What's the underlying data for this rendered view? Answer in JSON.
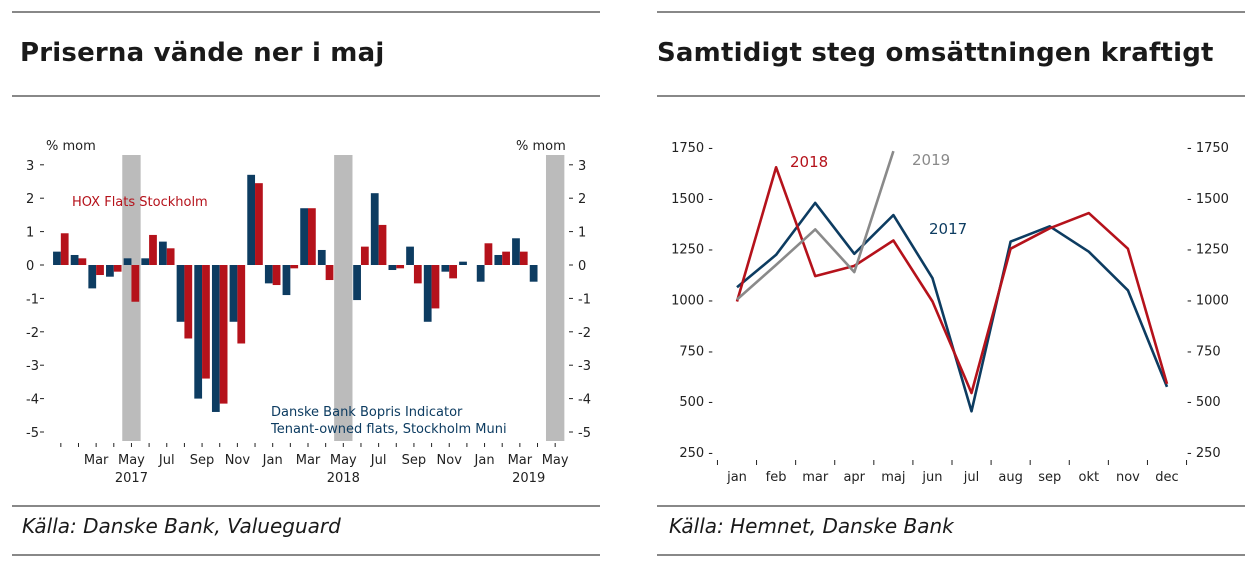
{
  "colors": {
    "navy": "#0d3c61",
    "red": "#b5121b",
    "gray": "#8a8a8a",
    "shade": "#bbbbbb"
  },
  "left_panel": {
    "title": "Priserna vände ner i maj",
    "source": "Källa: Danske Bank, Valueguard"
  },
  "right_panel": {
    "title": "Samtidigt steg omsättningen kraftigt",
    "source": "Källa: Hemnet, Danske Bank"
  },
  "chart_data": [
    {
      "type": "bar",
      "title": "Priserna vände ner i maj",
      "ylabel_left": "% mom",
      "ylabel_right": "% mom",
      "ylim": [
        -5.3,
        3.3
      ],
      "yticks": [
        3,
        2,
        1,
        0,
        -1,
        -2,
        -3,
        -4,
        -5
      ],
      "ytick_labels": [
        "3",
        "2",
        "1",
        "0",
        "-1",
        "-2",
        "-3",
        "-4",
        "-5"
      ],
      "categories": [
        "2017-Jan",
        "2017-Feb",
        "2017-Mar",
        "2017-Apr",
        "2017-May",
        "2017-Jun",
        "2017-Jul",
        "2017-Aug",
        "2017-Sep",
        "2017-Oct",
        "2017-Nov",
        "2017-Dec",
        "2018-Jan",
        "2018-Feb",
        "2018-Mar",
        "2018-Apr",
        "2018-May",
        "2018-Jun",
        "2018-Jul",
        "2018-Aug",
        "2018-Sep",
        "2018-Oct",
        "2018-Nov",
        "2018-Dec",
        "2019-Jan",
        "2019-Feb",
        "2019-Mar",
        "2019-Apr",
        "2019-May"
      ],
      "month_labels": [
        "Mar",
        "May",
        "Jul",
        "Sep",
        "Nov",
        "Jan",
        "Mar",
        "May",
        "Jul",
        "Sep",
        "Nov",
        "Jan",
        "Mar",
        "May"
      ],
      "month_label_index": [
        2,
        4,
        6,
        8,
        10,
        12,
        14,
        16,
        18,
        20,
        22,
        24,
        26,
        28
      ],
      "year_labels": [
        "2017",
        "2018",
        "2019"
      ],
      "year_label_index": [
        4,
        16,
        26.5
      ],
      "shaded_months": [
        4,
        16,
        28
      ],
      "series": [
        {
          "name": "Danske Bank Bopris Indicator",
          "name_line2": "Tenant-owned flats, Stockholm Muni",
          "color": "#0d3c61",
          "values": [
            0.4,
            0.3,
            -0.7,
            -0.35,
            0.2,
            0.2,
            0.7,
            -1.7,
            -4.0,
            -4.4,
            -1.7,
            2.7,
            -0.55,
            -0.9,
            1.7,
            0.45,
            0.0,
            -1.05,
            2.15,
            -0.15,
            0.55,
            -1.7,
            -0.2,
            0.1,
            -0.5,
            0.3,
            0.8,
            -0.5,
            null
          ]
        },
        {
          "name": "HOX Flats Stockholm",
          "color": "#b5121b",
          "values": [
            0.95,
            0.2,
            -0.3,
            -0.2,
            -1.1,
            0.9,
            0.5,
            -2.2,
            -3.4,
            -4.15,
            -2.35,
            2.45,
            -0.6,
            -0.1,
            1.7,
            -0.45,
            0.0,
            0.55,
            1.2,
            -0.1,
            -0.55,
            -1.3,
            -0.4,
            0.0,
            0.65,
            0.4,
            0.4,
            null,
            null
          ]
        }
      ]
    },
    {
      "type": "line",
      "title": "Samtidigt steg omsättningen kraftigt",
      "ylim": [
        250,
        1750
      ],
      "yticks": [
        250,
        500,
        750,
        1000,
        1250,
        1500,
        1750
      ],
      "ytick_labels_left": [
        "250 -",
        "500 -",
        "750 -",
        "1000 -",
        "1250 -",
        "1500 -",
        "1750 -"
      ],
      "ytick_labels_right": [
        "- 250",
        "- 500",
        "- 750",
        "- 1000",
        "- 1250",
        "- 1500",
        "- 1750"
      ],
      "categories": [
        "jan",
        "feb",
        "mar",
        "apr",
        "maj",
        "jun",
        "jul",
        "aug",
        "sep",
        "okt",
        "nov",
        "dec"
      ],
      "series": [
        {
          "name": "2017",
          "color": "#0d3c61",
          "values": [
            1060,
            1220,
            1475,
            1225,
            1415,
            1105,
            450,
            1285,
            1360,
            1235,
            1045,
            570
          ]
        },
        {
          "name": "2018",
          "color": "#b5121b",
          "values": [
            990,
            1650,
            1115,
            1165,
            1290,
            990,
            540,
            1250,
            1350,
            1425,
            1250,
            585
          ]
        },
        {
          "name": "2019",
          "color": "#8a8a8a",
          "values": [
            1000,
            1170,
            1345,
            1135,
            1730,
            null,
            null,
            null,
            null,
            null,
            null,
            null
          ]
        }
      ]
    }
  ]
}
